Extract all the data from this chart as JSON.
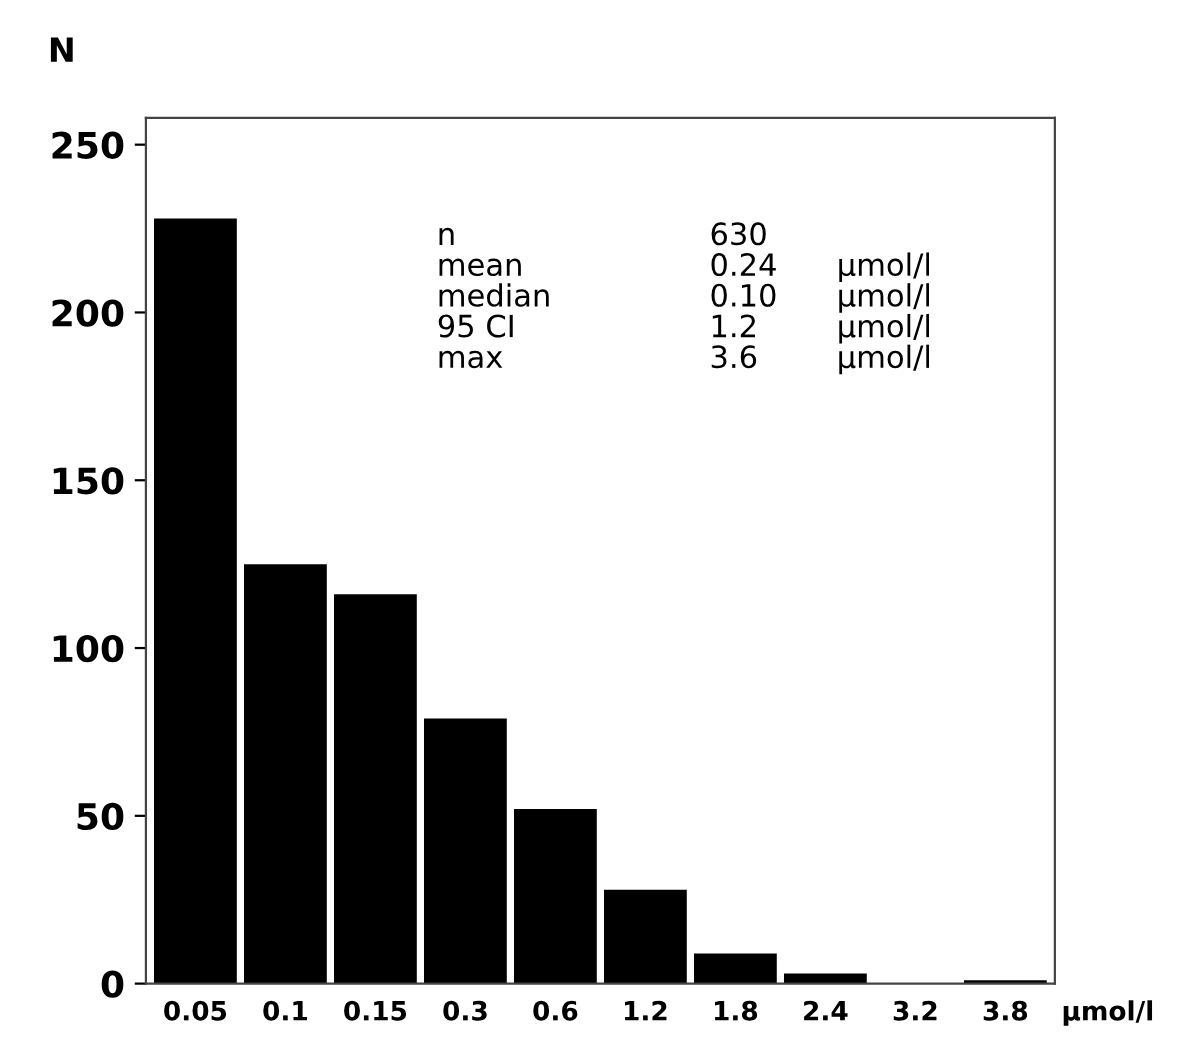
{
  "chart_data": {
    "type": "bar",
    "ylabel": "N",
    "xlabel": "µmol/l",
    "categories": [
      "0.05",
      "0.1",
      "0.15",
      "0.3",
      "0.6",
      "1.2",
      "1.8",
      "2.4",
      "3.2",
      "3.8"
    ],
    "values": [
      228,
      125,
      116,
      79,
      52,
      28,
      9,
      3,
      0,
      1
    ],
    "color": "#000000",
    "ylim": [
      0,
      258
    ],
    "yticks": [
      0,
      50,
      100,
      150,
      200,
      250
    ],
    "grid": false,
    "legend": false,
    "annotations": [
      "n\nmean\nmedian\n95 CI\nmax",
      "630\n0.24\n0.10\n1.2\n3.6",
      "\nµmol/l\nµmol/l\nµmol/l\nµmol/l"
    ]
  }
}
